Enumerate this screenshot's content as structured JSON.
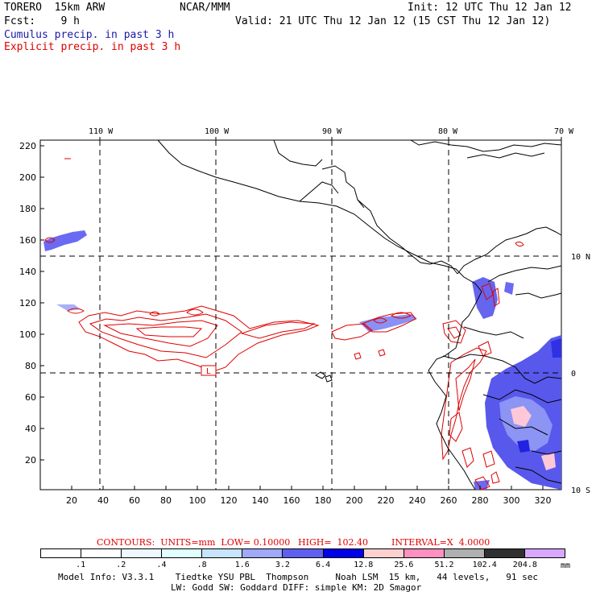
{
  "header": {
    "model_title": "TORERO  15km ARW",
    "org": "NCAR/MMM",
    "init": "Init: 12 UTC Thu 12 Jan 12",
    "forecast": "Fcst:    9 h",
    "valid": "Valid: 21 UTC Thu 12 Jan 12 (15 CST Thu 12 Jan 12)",
    "field_1": "Cumulus precip. in past 3 h",
    "field_2": "Explicit precip. in past 3 h"
  },
  "map": {
    "lon_labels": [
      "110 W",
      "100 W",
      "90 W",
      "80 W",
      "70 W"
    ],
    "lat_labels": [
      "10 N",
      "0",
      "10 S"
    ],
    "y_ticks": [
      "220",
      "200",
      "180",
      "160",
      "140",
      "120",
      "100",
      "80",
      "60",
      "40",
      "20"
    ],
    "x_ticks": [
      "20",
      "40",
      "60",
      "80",
      "100",
      "120",
      "140",
      "160",
      "180",
      "200",
      "220",
      "240",
      "260",
      "280",
      "300",
      "320"
    ],
    "low_box_label": "L",
    "colors": {
      "coast": "#000000",
      "grid": "#000000",
      "contour": "#e00000",
      "cumulus": "#4545ff"
    }
  },
  "contours_line": {
    "label": "CONTOURS:  UNITS=mm  LOW= 0.10000",
    "high": "HIGH=  102.40",
    "interval": "INTERVAL=X  4.0000"
  },
  "legend": {
    "labels": [
      ".1",
      ".2",
      ".4",
      ".8",
      "1.6",
      "3.2",
      "6.4",
      "12.8",
      "25.6",
      "51.2",
      "102.4",
      "204.8"
    ],
    "unit": "mm",
    "colors": [
      "#ffffff",
      "#ffffff",
      "#eef8ff",
      "#e0ffff",
      "#c6e4fb",
      "#a0a8f8",
      "#6060f0",
      "#0000e8",
      "#ffd0d0",
      "#ff90c0",
      "#b0b0b0",
      "#303030",
      "#d8a8ff"
    ]
  },
  "footer": {
    "line1": "Model Info: V3.3.1    Tiedtke YSU PBL  Thompson     Noah LSM  15 km,   44 levels,   91 sec",
    "line2": "LW: Godd SW: Goddard DIFF: simple KM: 2D Smagor"
  }
}
